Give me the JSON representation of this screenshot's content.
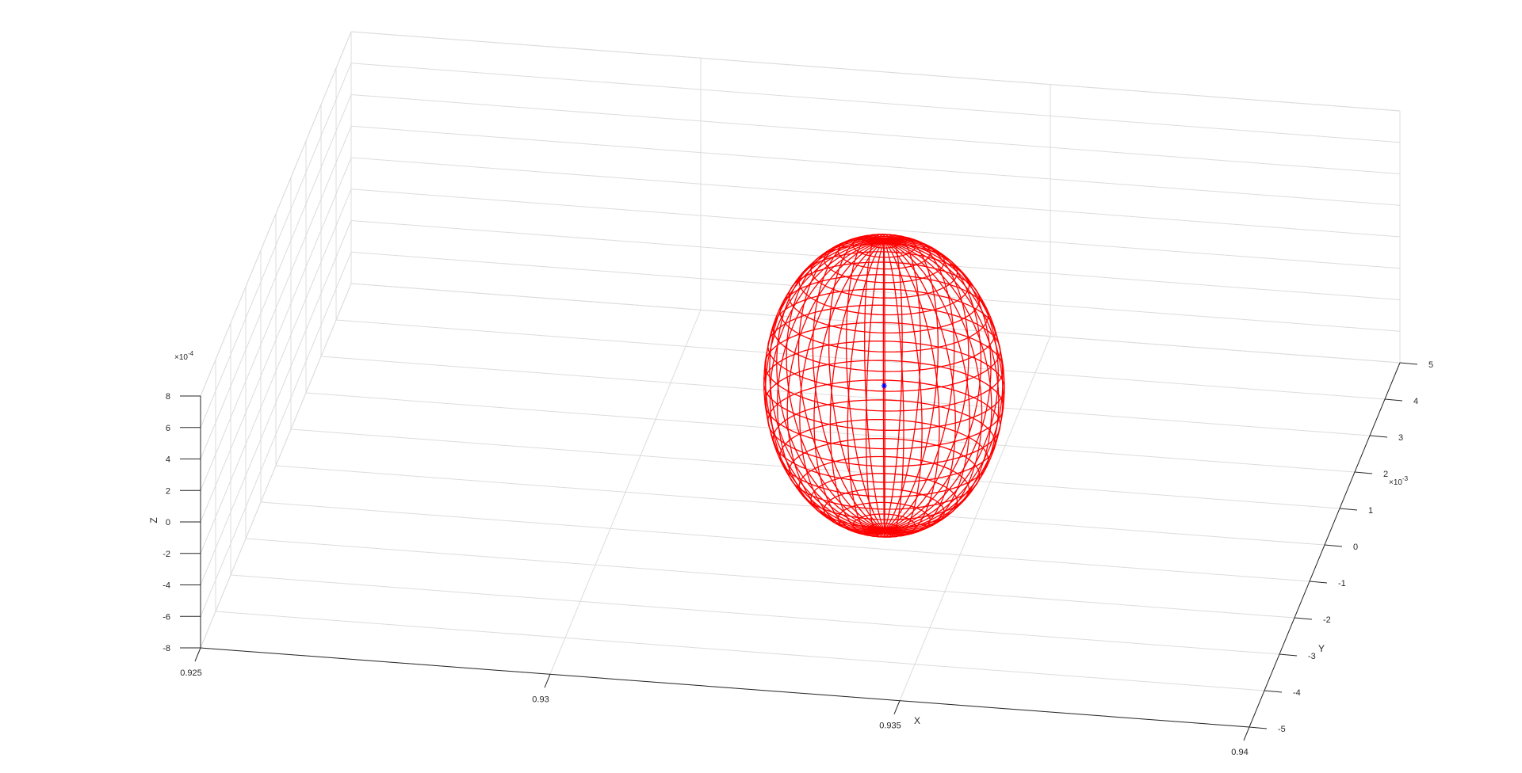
{
  "chart_data": {
    "type": "3d-mesh",
    "title": "",
    "xlabel": "X",
    "ylabel": "Y",
    "zlabel": "Z",
    "xlim": [
      0.925,
      0.94
    ],
    "ylim": [
      -0.005,
      0.005
    ],
    "zlim": [
      -0.0008,
      0.0008
    ],
    "grid": true,
    "x_ticks": [
      {
        "value": 0.925,
        "label": "0.925"
      },
      {
        "value": 0.93,
        "label": "0.93"
      },
      {
        "value": 0.935,
        "label": "0.935"
      },
      {
        "value": 0.94,
        "label": "0.94"
      }
    ],
    "y_ticks": [
      {
        "value": -5,
        "label": "-5"
      },
      {
        "value": -4,
        "label": "-4"
      },
      {
        "value": -3,
        "label": "-3"
      },
      {
        "value": -2,
        "label": "-2"
      },
      {
        "value": -1,
        "label": "-1"
      },
      {
        "value": 0,
        "label": "0"
      },
      {
        "value": 1,
        "label": "1"
      },
      {
        "value": 2,
        "label": "2"
      },
      {
        "value": 3,
        "label": "3"
      },
      {
        "value": 4,
        "label": "4"
      },
      {
        "value": 5,
        "label": "5"
      }
    ],
    "z_ticks": [
      {
        "value": -8,
        "label": "-8"
      },
      {
        "value": -6,
        "label": "-6"
      },
      {
        "value": -4,
        "label": "-4"
      },
      {
        "value": -2,
        "label": "-2"
      },
      {
        "value": 0,
        "label": "0"
      },
      {
        "value": 2,
        "label": "2"
      },
      {
        "value": 4,
        "label": "4"
      },
      {
        "value": 6,
        "label": "6"
      },
      {
        "value": 8,
        "label": "8"
      }
    ],
    "y_exponent": {
      "base": "×10",
      "power": "-3"
    },
    "z_exponent": {
      "base": "×10",
      "power": "-4"
    },
    "series": [
      {
        "kind": "ellipsoid-mesh",
        "center": [
          0.9337,
          0.0,
          0.0
        ],
        "semi_axes": [
          0.0017,
          0.0012,
          0.00092
        ],
        "meridians": 40,
        "parallels": 24,
        "color": "#ff0000"
      },
      {
        "kind": "point",
        "marker": "*",
        "position": [
          0.9337,
          0.0,
          0.0
        ],
        "color": "#0000ff"
      }
    ]
  },
  "colors": {
    "grid": "#dcdcdc",
    "axis": "#262626",
    "mesh": "#ff0000",
    "center_marker": "#0000ff"
  }
}
